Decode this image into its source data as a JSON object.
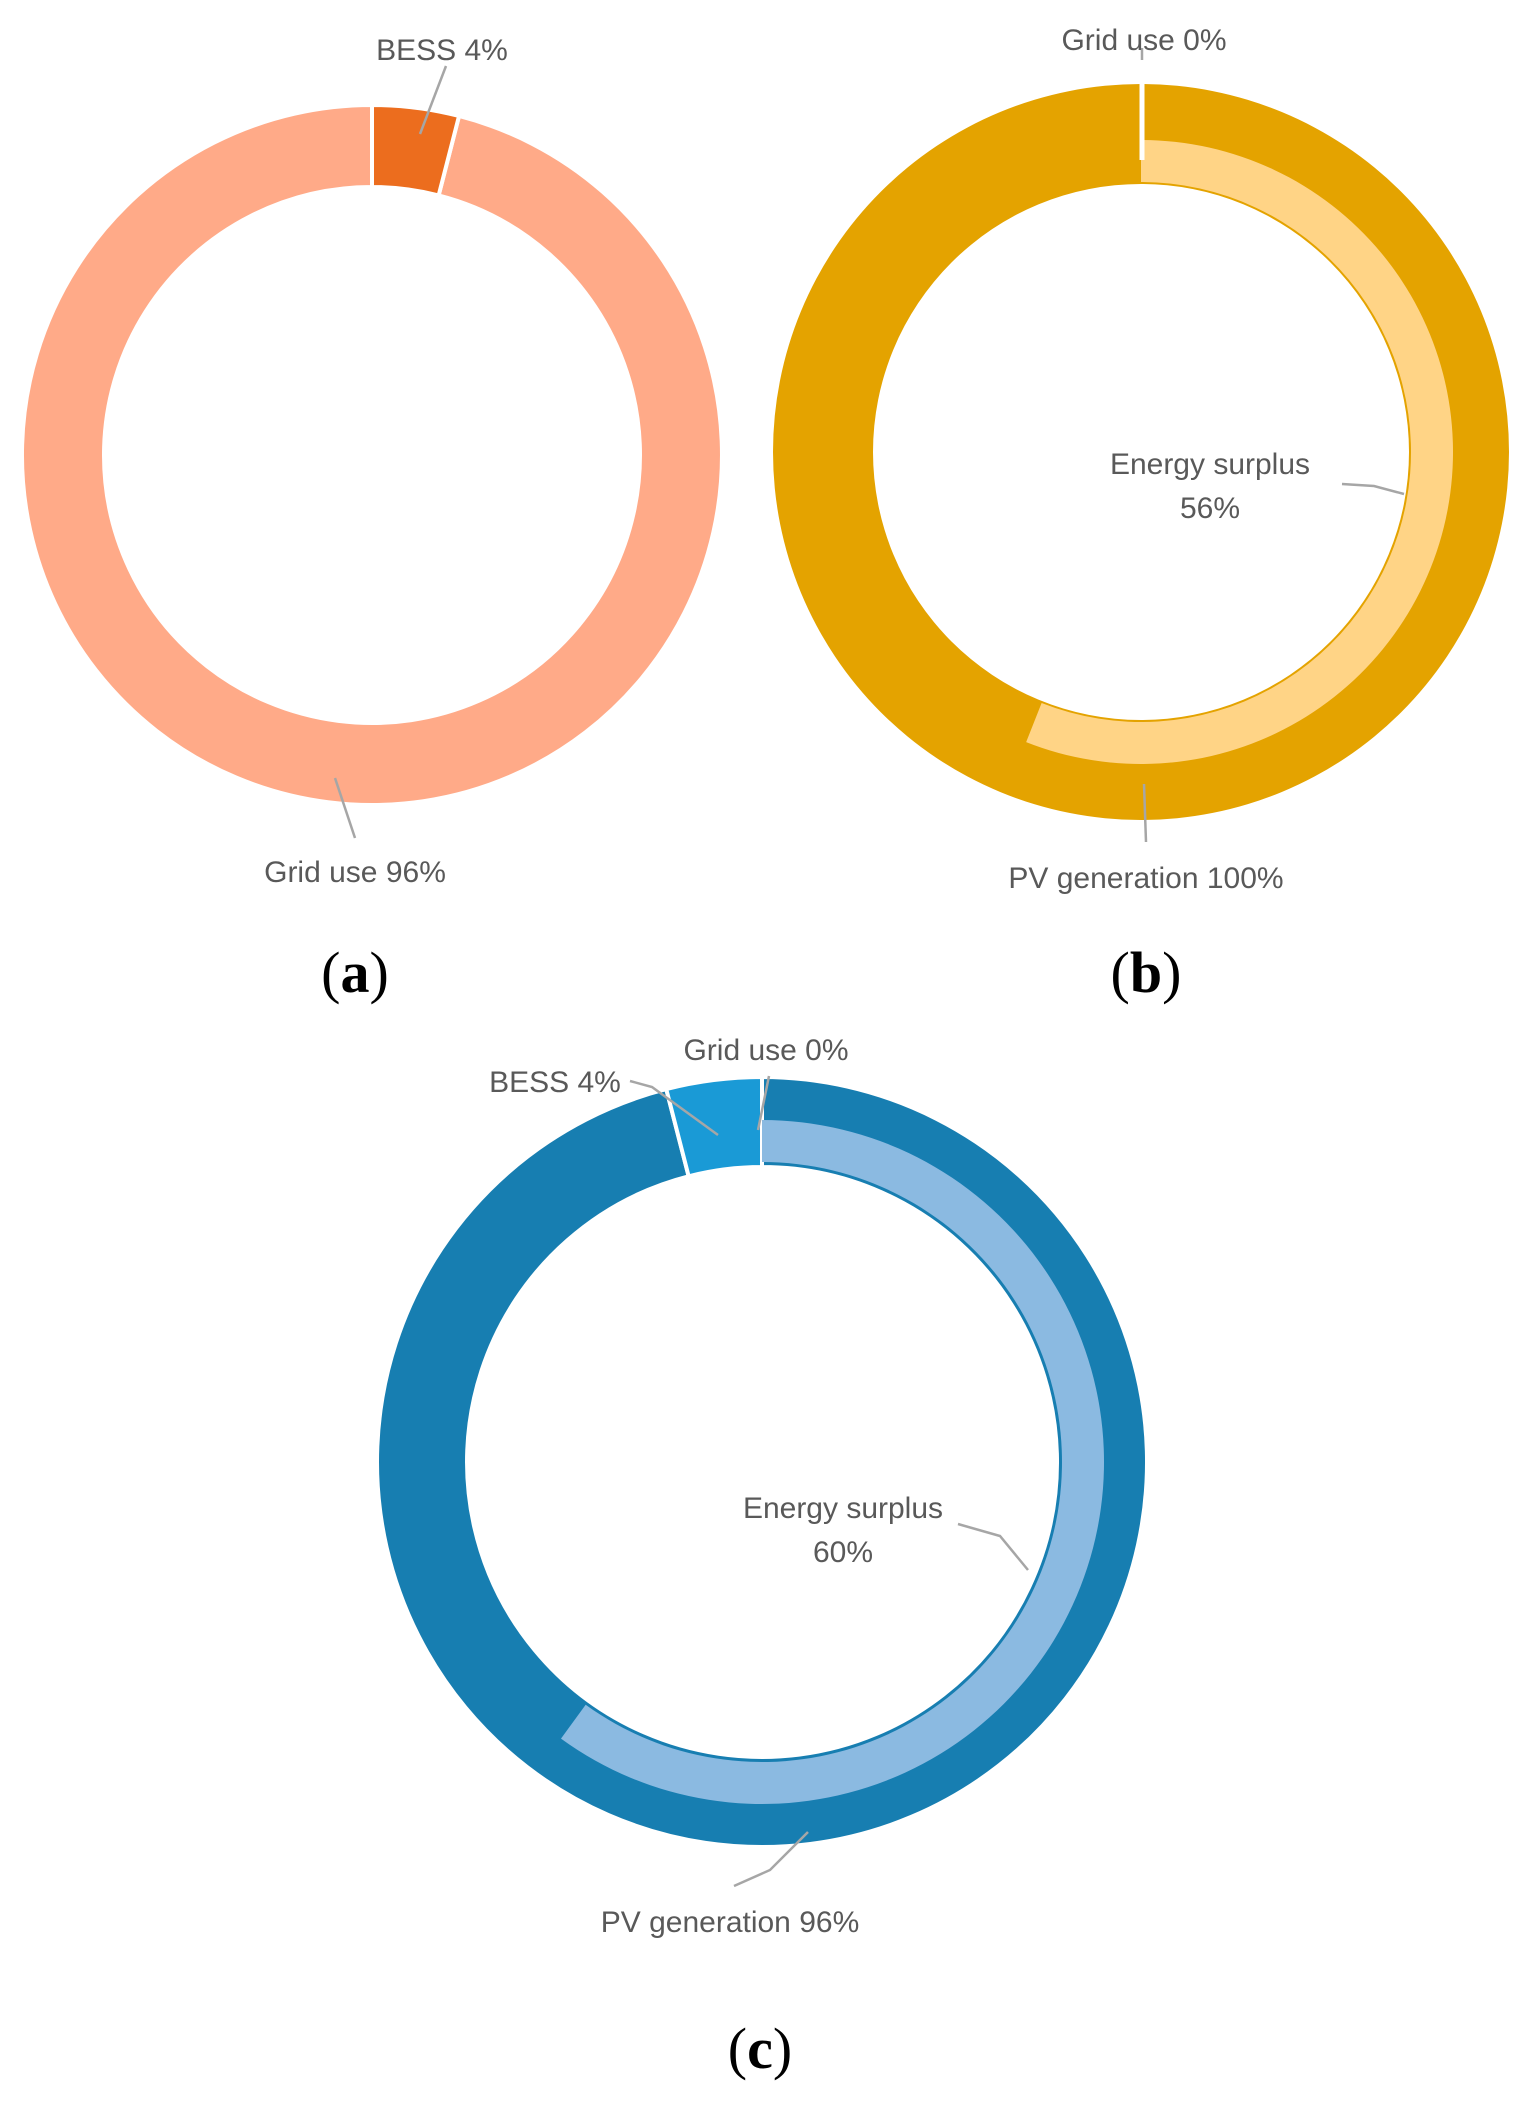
{
  "colors": {
    "a_grid": "#FFAA88",
    "a_bess": "#EC6D1E",
    "b_pv": "#E4A300",
    "b_surplus": "#FFD486",
    "c_pv": "#177EB1",
    "c_bess": "#1A9AD6",
    "c_surplus": "#8BBAE1",
    "leader": "#A6A6A6",
    "label_text": "#595959"
  },
  "chart_data": [
    {
      "panel": "a",
      "panel_label": "a",
      "type": "pie",
      "variant": "donut",
      "outer_ring": [
        {
          "name": "BESS",
          "value": 4,
          "label": "BESS 4%"
        },
        {
          "name": "Grid use",
          "value": 96,
          "label": "Grid use 96%"
        }
      ]
    },
    {
      "panel": "b",
      "panel_label": "b",
      "type": "pie",
      "variant": "donut",
      "outer_ring": [
        {
          "name": "Grid use",
          "value": 0,
          "label": "Grid use 0%"
        },
        {
          "name": "PV generation",
          "value": 100,
          "label": "PV generation 100%"
        }
      ],
      "inner_ring": [
        {
          "name": "Energy surplus",
          "value": 56,
          "label_line1": "Energy surplus",
          "label_line2": "56%"
        }
      ]
    },
    {
      "panel": "c",
      "panel_label": "c",
      "type": "pie",
      "variant": "donut",
      "outer_ring": [
        {
          "name": "Grid use",
          "value": 0,
          "label": "Grid use 0%"
        },
        {
          "name": "PV generation",
          "value": 96,
          "label": "PV generation 96%"
        },
        {
          "name": "BESS",
          "value": 4,
          "label": "BESS 4%"
        }
      ],
      "inner_ring": [
        {
          "name": "Energy surplus",
          "value": 60,
          "label_line1": "Energy surplus",
          "label_line2": "60%"
        }
      ]
    }
  ]
}
